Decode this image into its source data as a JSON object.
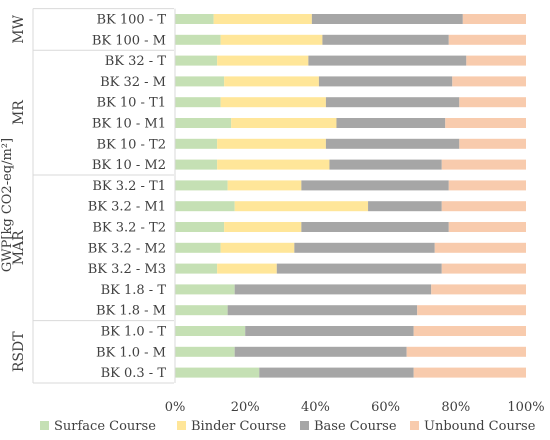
{
  "chart_data": {
    "type": "bar",
    "orientation": "horizontal",
    "stacked": "percent",
    "ylabel": "GWP[kg CO2-eq/m²]",
    "xlim": [
      0,
      100
    ],
    "x_ticks": [
      "0%",
      "20%",
      "40%",
      "60%",
      "80%",
      "100%"
    ],
    "grid": false,
    "legend_position": "bottom",
    "categories": [
      "BK 100 - T",
      "BK 100 - M",
      "BK 32 - T",
      "BK 32 - M",
      "BK 10 - T1",
      "BK 10 - M1",
      "BK 10 - T2",
      "BK 10 - M2",
      "BK 3.2 - T1",
      "BK 3.2 - M1",
      "BK 3.2 - T2",
      "BK 3.2 - M2",
      "BK 3.2 - M3",
      "BK 1.8 - T",
      "BK 1.8 - M",
      "BK 1.0 - T",
      "BK 1.0 - M",
      "BK 0.3 - T"
    ],
    "groups": [
      {
        "label": "MW",
        "count": 2
      },
      {
        "label": "MR",
        "count": 6
      },
      {
        "label": "MAR",
        "count": 7
      },
      {
        "label": "RSDT",
        "count": 3
      }
    ],
    "series": [
      {
        "name": "Surface Course",
        "color": "#c5e0b4",
        "values": [
          11,
          13,
          12,
          14,
          13,
          16,
          12,
          12,
          15,
          17,
          14,
          13,
          12,
          17,
          15,
          20,
          17,
          24
        ]
      },
      {
        "name": "Binder Course",
        "color": "#ffe699",
        "values": [
          28,
          29,
          26,
          27,
          30,
          30,
          31,
          32,
          21,
          38,
          22,
          21,
          17,
          0,
          0,
          0,
          0,
          0
        ]
      },
      {
        "name": "Base Course",
        "color": "#a6a6a6",
        "values": [
          43,
          36,
          45,
          38,
          38,
          31,
          38,
          32,
          42,
          21,
          42,
          40,
          47,
          56,
          54,
          48,
          49,
          44
        ]
      },
      {
        "name": "Unbound Course",
        "color": "#f8cbad",
        "values": [
          18,
          22,
          17,
          21,
          19,
          23,
          19,
          24,
          22,
          24,
          22,
          26,
          24,
          27,
          31,
          32,
          34,
          32
        ]
      }
    ]
  }
}
